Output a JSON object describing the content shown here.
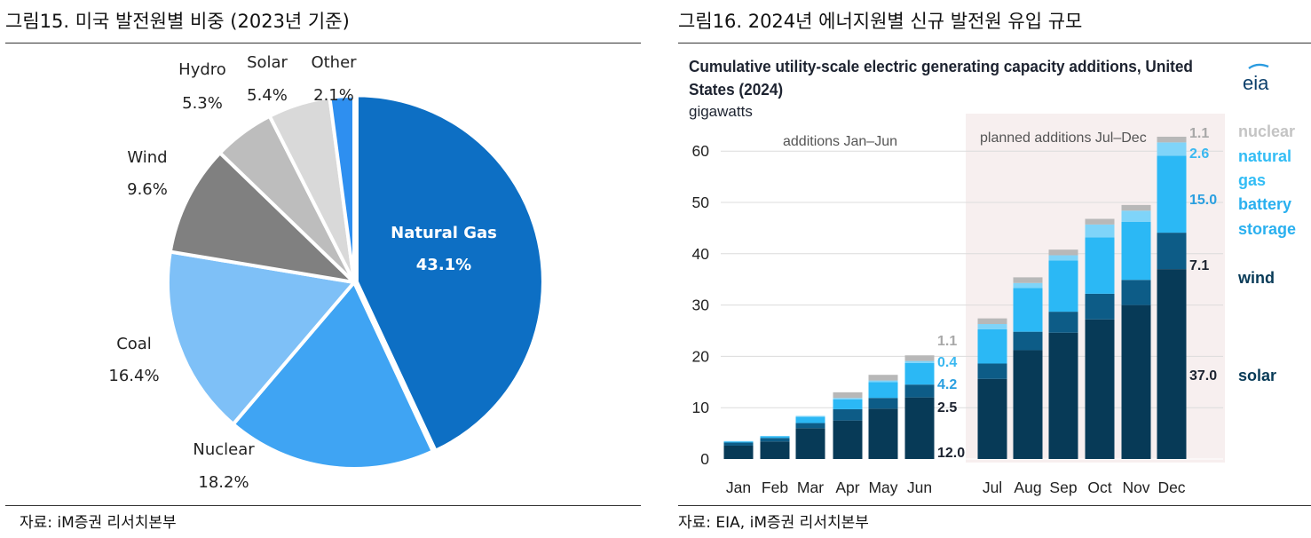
{
  "left_panel": {
    "title": "그림15. 미국 발전원별 비중 (2023년 기준)",
    "source": "자료: iM증권 리서치본부"
  },
  "right_panel": {
    "title": "그림16. 2024년 에너지원별 신규 발전원 유입 규모",
    "source": "자료: EIA, iM증권 리서치본부",
    "logo_text": "eia"
  },
  "chart_data": [
    {
      "type": "pie",
      "title": "미국 발전원별 비중 (2023년 기준)",
      "slices": [
        {
          "label": "Natural Gas",
          "value": 43.1,
          "value_label": "43.1%",
          "color": "#0d6fc4"
        },
        {
          "label": "Nuclear",
          "value": 18.2,
          "value_label": "18.2%",
          "color": "#3fa4f3"
        },
        {
          "label": "Coal",
          "value": 16.4,
          "value_label": "16.4%",
          "color": "#7ec0f7"
        },
        {
          "label": "Wind",
          "value": 9.6,
          "value_label": "9.6%",
          "color": "#808080"
        },
        {
          "label": "Hydro",
          "value": 5.3,
          "value_label": "5.3%",
          "color": "#bdbdbd"
        },
        {
          "label": "Solar",
          "value": 5.4,
          "value_label": "5.4%",
          "color": "#d9d9d9"
        },
        {
          "label": "Other",
          "value": 2.1,
          "value_label": "2.1%",
          "color": "#2e8ff0"
        }
      ]
    },
    {
      "type": "bar",
      "stacked": true,
      "title": "Cumulative utility-scale electric generating capacity additions, United States (2024)",
      "ylabel": "gigawatts",
      "ylim": [
        0,
        65
      ],
      "yticks": [
        0,
        10,
        20,
        30,
        40,
        50,
        60
      ],
      "categories": [
        "Jan",
        "Feb",
        "Mar",
        "Apr",
        "May",
        "Jun",
        "Jul",
        "Aug",
        "Sep",
        "Oct",
        "Nov",
        "Dec"
      ],
      "period_labels": {
        "actual": "additions Jan–Jun",
        "planned": "planned additions Jul–Dec"
      },
      "series": [
        {
          "name": "solar",
          "color": "#073a57",
          "values": [
            2.6,
            3.4,
            6.0,
            7.5,
            9.8,
            12.0,
            15.6,
            21.2,
            24.6,
            27.2,
            30.0,
            37.0
          ]
        },
        {
          "name": "wind",
          "color": "#0d5c87",
          "values": [
            0.6,
            0.7,
            1.0,
            2.2,
            2.1,
            2.5,
            3.0,
            3.6,
            4.1,
            5.0,
            4.9,
            7.1
          ]
        },
        {
          "name": "battery storage",
          "color": "#2bb8f5",
          "values": [
            0.2,
            0.3,
            1.2,
            1.9,
            3.1,
            4.2,
            6.7,
            8.5,
            10.0,
            11.0,
            11.3,
            15.0
          ]
        },
        {
          "name": "natural gas",
          "color": "#7fd4f9",
          "values": [
            0.1,
            0.1,
            0.2,
            0.3,
            0.3,
            0.4,
            1.0,
            1.0,
            1.0,
            2.5,
            2.2,
            2.6
          ]
        },
        {
          "name": "nuclear",
          "color": "#b8b8b8",
          "values": [
            0.0,
            0.0,
            0.0,
            1.1,
            1.1,
            1.1,
            1.1,
            1.1,
            1.1,
            1.1,
            1.1,
            1.1
          ]
        }
      ],
      "value_labels": {
        "Jun": {
          "solar": "12.0",
          "wind": "2.5",
          "battery storage": "4.2",
          "natural gas": "0.4",
          "nuclear": "1.1"
        },
        "Dec": {
          "solar": "37.0",
          "wind": "7.1",
          "battery storage": "15.0",
          "natural gas": "2.6",
          "nuclear": "1.1"
        }
      },
      "legend": [
        {
          "label": "nuclear",
          "color": "#c4c4c4"
        },
        {
          "label": "natural gas",
          "color": "#33bdf5"
        },
        {
          "label": "battery storage",
          "color": "#2ab0ef"
        },
        {
          "label": "wind",
          "color": "#073a57"
        },
        {
          "label": "solar",
          "color": "#073a57"
        }
      ]
    }
  ]
}
